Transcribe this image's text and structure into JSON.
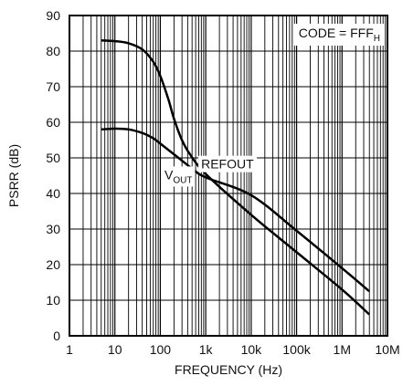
{
  "chart_data": {
    "type": "line",
    "xlabel": "FREQUENCY (Hz)",
    "ylabel": "PSRR (dB)",
    "xscale": "log",
    "xlim": [
      1,
      10000000
    ],
    "ylim": [
      0,
      90
    ],
    "grid": true,
    "x_tick_labels": [
      "1",
      "10",
      "100",
      "1k",
      "10k",
      "100k",
      "1M",
      "10M"
    ],
    "x_tick_values": [
      1,
      10,
      100,
      1000,
      10000,
      100000,
      1000000,
      10000000
    ],
    "y_tick_labels": [
      "0",
      "10",
      "20",
      "30",
      "40",
      "50",
      "60",
      "70",
      "80",
      "90"
    ],
    "y_tick_values": [
      0,
      10,
      20,
      30,
      40,
      50,
      60,
      70,
      80,
      90
    ],
    "annotation": {
      "main": "CODE = FFF",
      "sub": "H"
    },
    "series": [
      {
        "name": "REFOUT",
        "label": {
          "main": "REFOUT",
          "sub": ""
        },
        "color": "#000000",
        "x": [
          5,
          10,
          20,
          40,
          70,
          100,
          150,
          200,
          300,
          450,
          1000,
          10000,
          100000,
          1000000,
          4000000
        ],
        "y": [
          83,
          82.8,
          82.2,
          80.5,
          77,
          73,
          66.5,
          61,
          55,
          51,
          45.5,
          34,
          23.5,
          13,
          6
        ]
      },
      {
        "name": "VOUT",
        "label": {
          "main": "V",
          "sub": "OUT"
        },
        "color": "#000000",
        "x": [
          5,
          10,
          20,
          40,
          70,
          100,
          200,
          500,
          1000,
          10000,
          100000,
          1000000,
          4000000
        ],
        "y": [
          58,
          58.2,
          58,
          57,
          55.5,
          54,
          51,
          47,
          44.5,
          39.5,
          29.5,
          19,
          12.5
        ]
      }
    ]
  }
}
